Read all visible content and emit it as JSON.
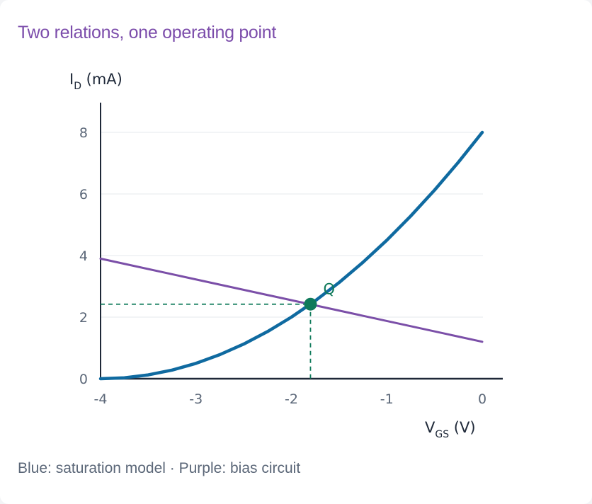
{
  "title": "Two relations, one operating point",
  "caption": "Blue: saturation model · Purple: bias circuit",
  "chart_data": {
    "type": "line",
    "xlabel": {
      "main": "V",
      "sub": "GS",
      "unit": " (V)"
    },
    "ylabel": {
      "main": "I",
      "sub": "D",
      "unit": " (mA)"
    },
    "xlim": [
      -4,
      0.2
    ],
    "ylim": [
      0,
      9
    ],
    "x_ticks": [
      -4,
      -3,
      -2,
      -1,
      0
    ],
    "y_ticks": [
      0,
      2,
      4,
      6,
      8
    ],
    "x_tick_labels": [
      "-4",
      "-3",
      "-2",
      "-1",
      "0"
    ],
    "y_tick_labels": [
      "0",
      "2",
      "4",
      "6",
      "8"
    ],
    "grid": "horizontal",
    "series": [
      {
        "model": "saturation",
        "color": "#0f6aa0",
        "x": [
          -4,
          -3.75,
          -3.5,
          -3.25,
          -3,
          -2.75,
          -2.5,
          -2.25,
          -2,
          -1.75,
          -1.5,
          -1.25,
          -1,
          -0.75,
          -0.5,
          -0.25,
          0
        ],
        "y": [
          0,
          0.031,
          0.125,
          0.281,
          0.5,
          0.781,
          1.125,
          1.531,
          2.0,
          2.531,
          3.125,
          3.781,
          4.5,
          5.281,
          6.125,
          7.031,
          8.0
        ]
      },
      {
        "model": "bias",
        "color": "#7b4fa8",
        "x": [
          -4,
          0
        ],
        "y": [
          3.9,
          1.2
        ]
      }
    ],
    "operating_point": {
      "label": "Q",
      "x": -1.8,
      "y": 2.42,
      "color": "#0f7a5a"
    },
    "colors": {
      "axis": "#1e2838",
      "grid": "#e6e9ee",
      "tick_text": "#5b6778"
    }
  }
}
